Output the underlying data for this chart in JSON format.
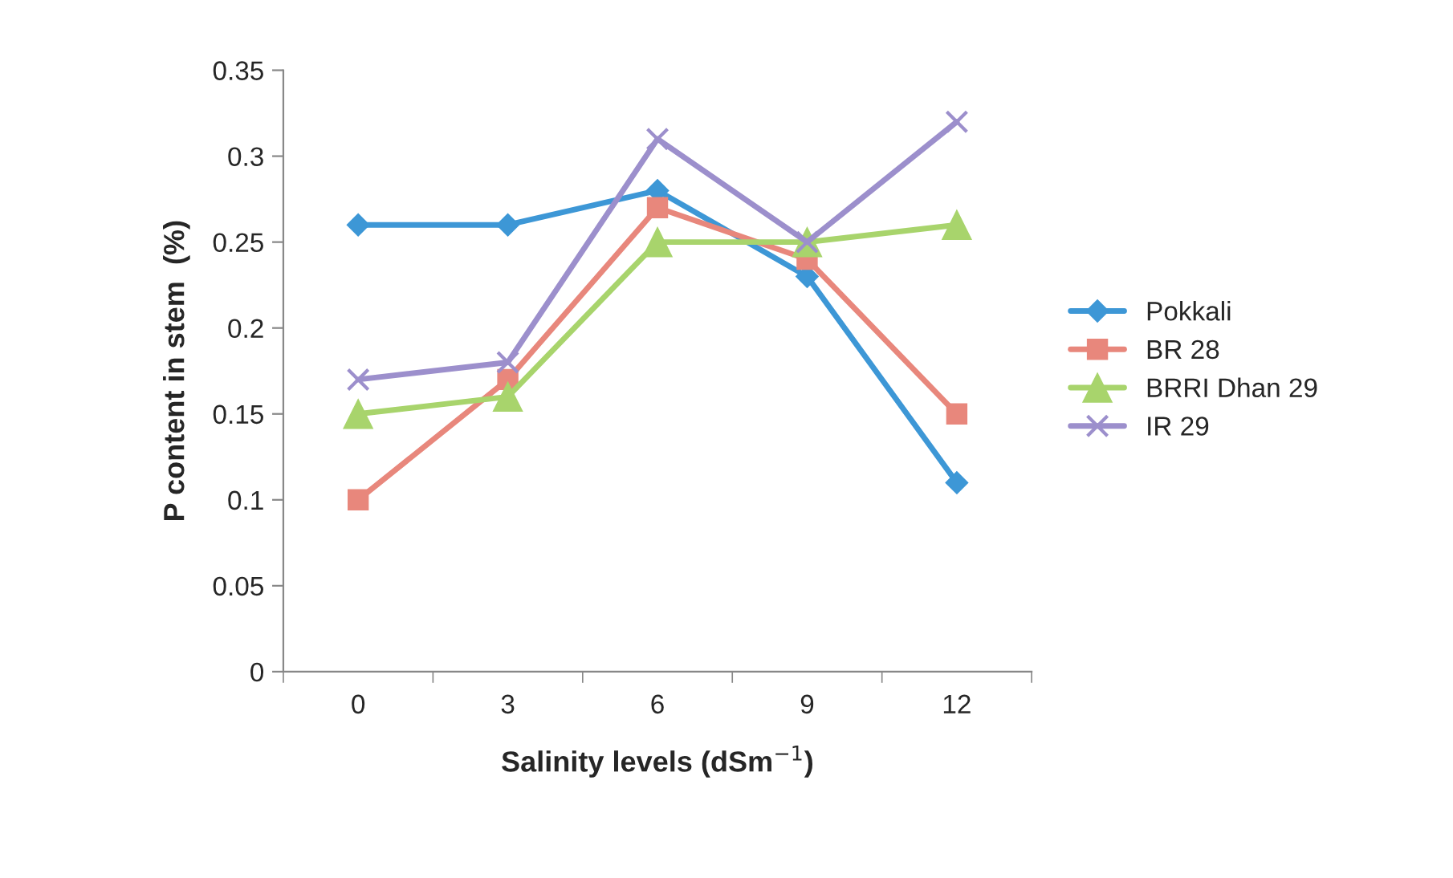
{
  "chart_data": {
    "type": "line",
    "xlabel": "Salinity levels (dSm$^{−1}$)",
    "ylabel": "P content in stem  (%)",
    "categories": [
      "0",
      "3",
      "6",
      "9",
      "12"
    ],
    "series": [
      {
        "name": "Pokkali",
        "color": "#3d97d6",
        "marker": "diamond",
        "values": [
          0.26,
          0.26,
          0.28,
          0.23,
          0.11
        ]
      },
      {
        "name": "BR 28",
        "color": "#e8877c",
        "marker": "square",
        "values": [
          0.1,
          0.17,
          0.27,
          0.24,
          0.15
        ]
      },
      {
        "name": "BRRI Dhan 29",
        "color": "#a8d46c",
        "marker": "triangle",
        "values": [
          0.15,
          0.16,
          0.25,
          0.25,
          0.26
        ]
      },
      {
        "name": "IR 29",
        "color": "#9c8fcc",
        "marker": "cross",
        "values": [
          0.17,
          0.18,
          0.31,
          0.25,
          0.32
        ]
      }
    ],
    "ylim": [
      0,
      0.35
    ],
    "yticks": [
      0,
      0.05,
      0.1,
      0.15,
      0.2,
      0.25,
      0.3,
      0.35
    ],
    "grid": false,
    "legend": "right",
    "line_style": "solid"
  }
}
